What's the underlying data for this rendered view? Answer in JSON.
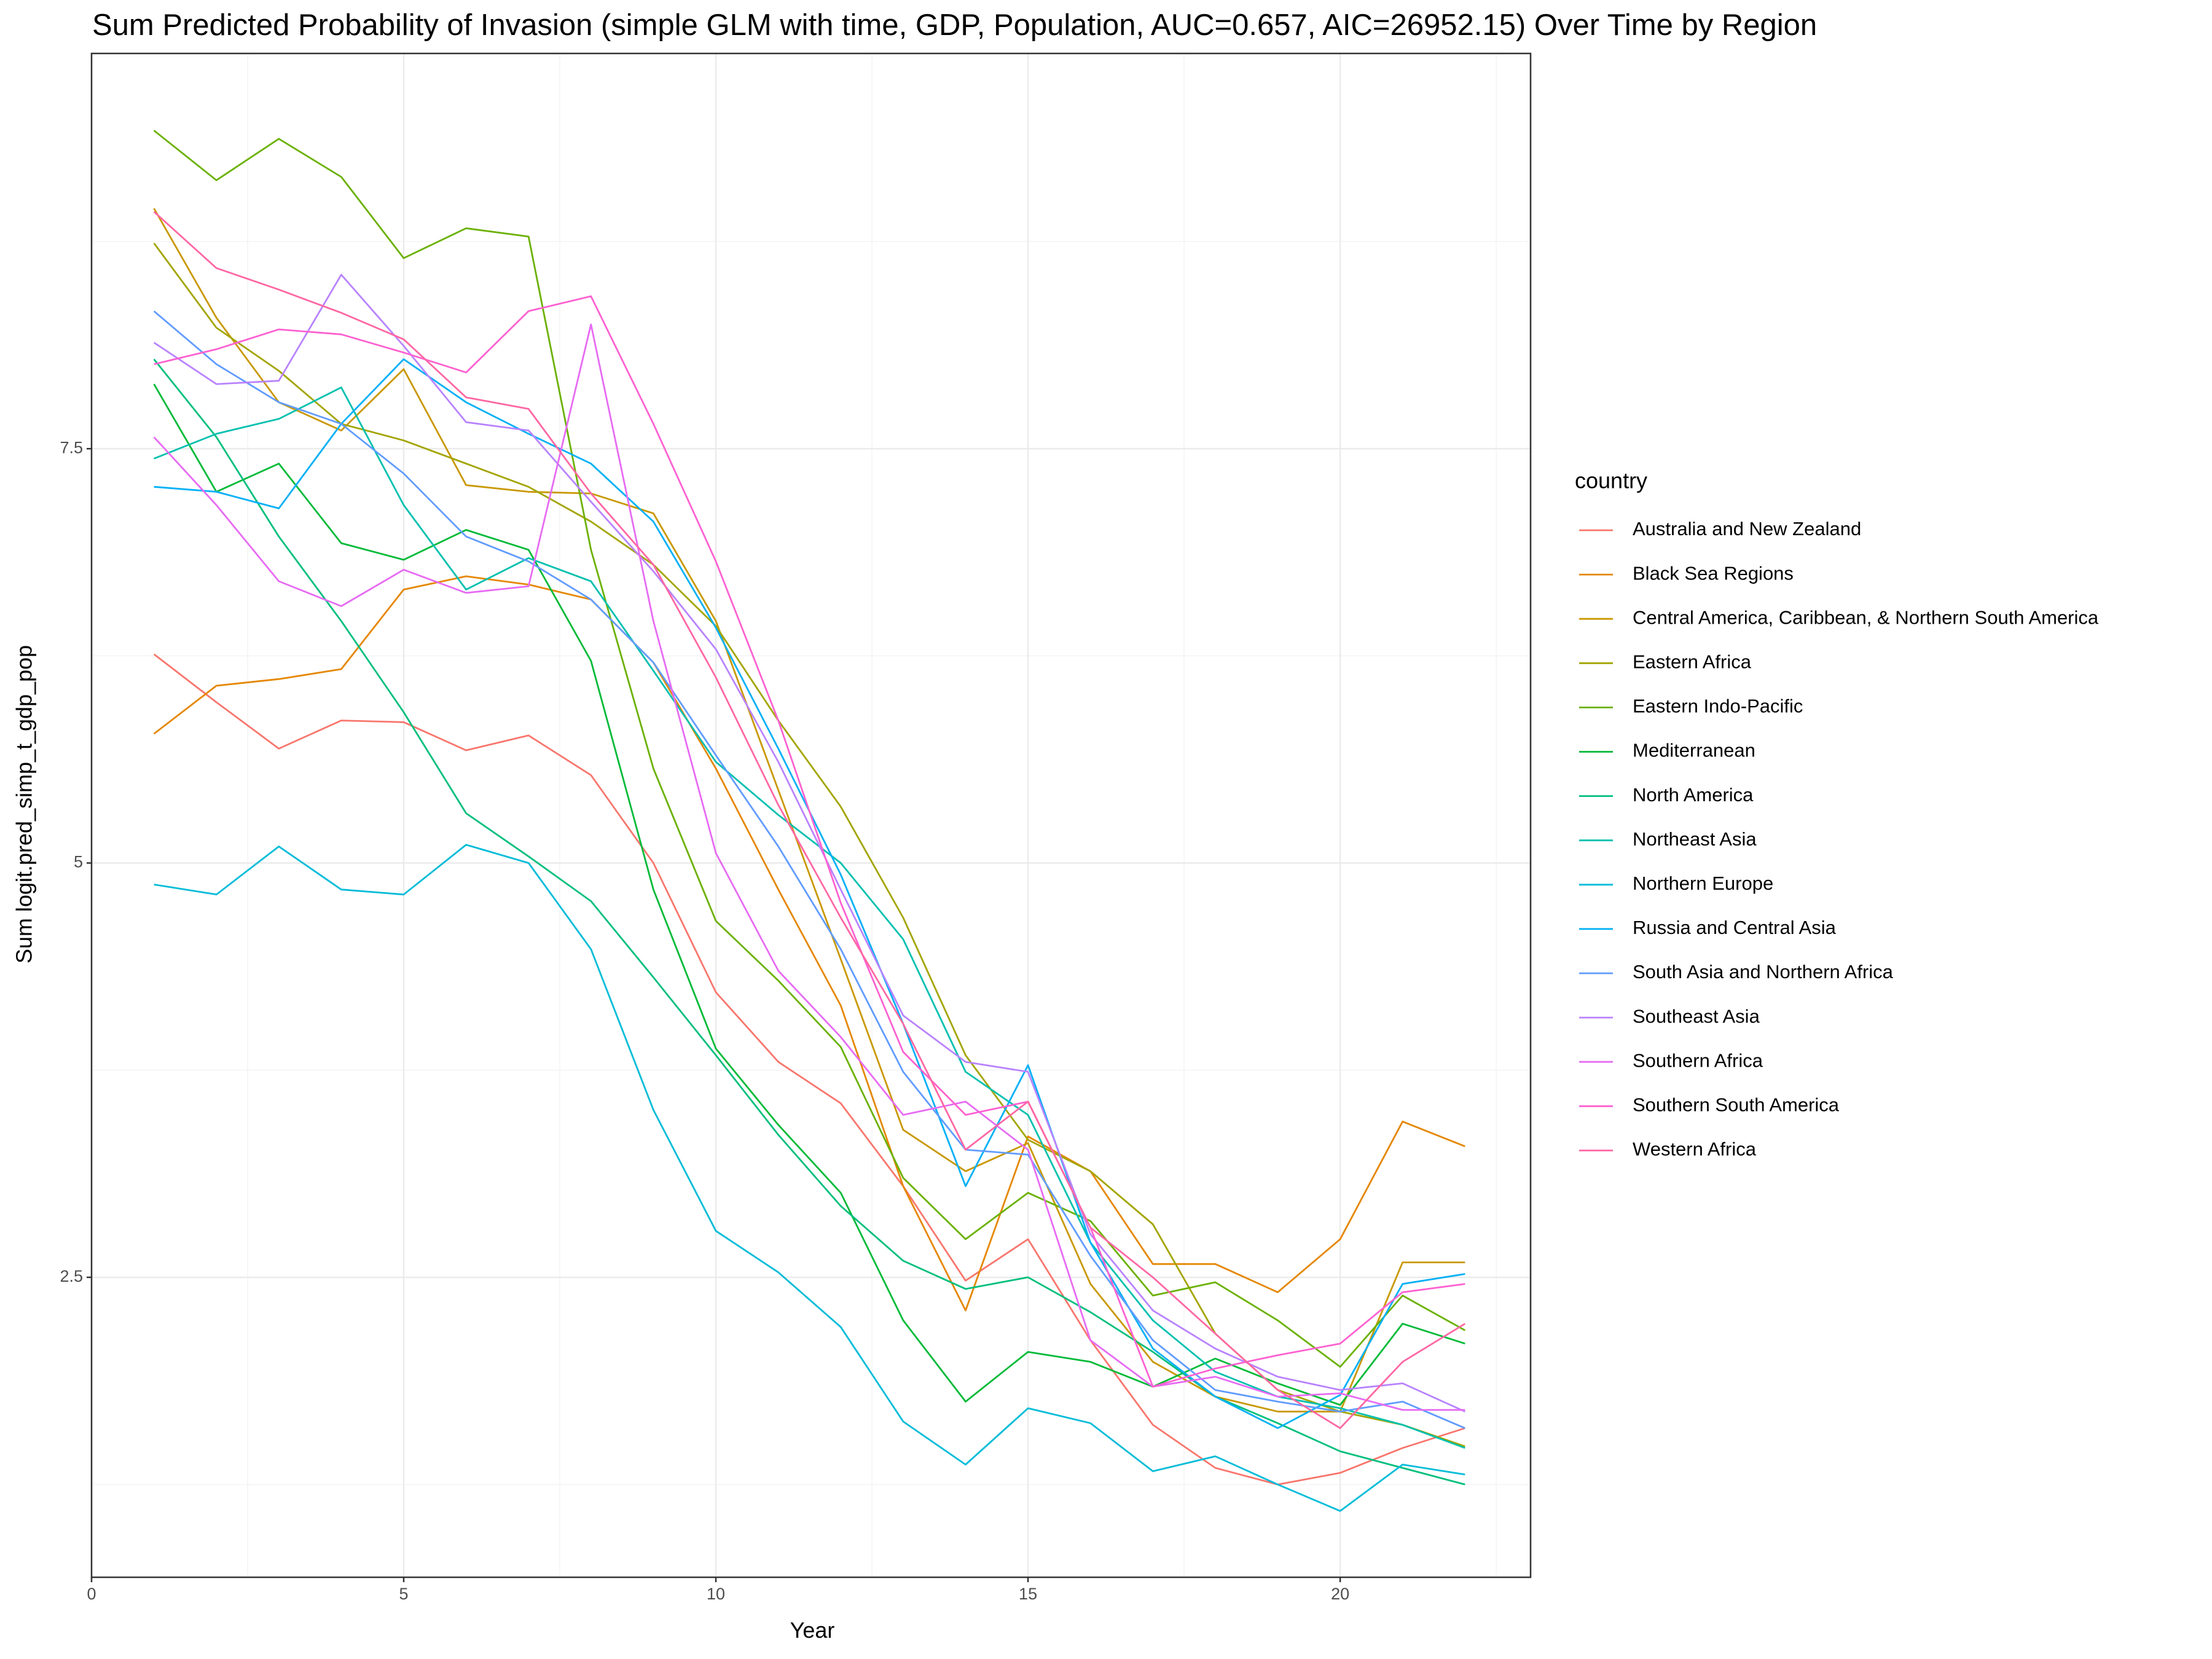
{
  "chart_data": {
    "type": "line",
    "title": "Sum Predicted Probability of Invasion (simple GLM with time, GDP, Population, AUC=0.657, AIC=26952.15) Over Time by Region",
    "x_label": "Year",
    "y_label": "Sum logit.pred_simp_t_gdp_pop",
    "legend_title": "country",
    "legend": "right",
    "grid": true,
    "xlim": [
      0,
      23.05
    ],
    "xticks": [
      0,
      5,
      10,
      15,
      20
    ],
    "ylim": [
      0.69,
      9.885
    ],
    "yticks": [
      2.5,
      5.0,
      7.5
    ],
    "x": [
      1,
      2,
      3,
      4,
      5,
      6,
      7,
      8,
      9,
      10,
      11,
      12,
      13,
      14,
      15,
      16,
      17,
      18,
      19,
      20,
      21,
      22
    ],
    "series": [
      {
        "name": "Australia and New Zealand",
        "color": "#F8766D",
        "values": [
          6.26,
          5.97,
          5.69,
          5.86,
          5.85,
          5.68,
          5.77,
          5.53,
          5.0,
          4.22,
          3.8,
          3.55,
          3.05,
          2.48,
          2.73,
          2.12,
          1.61,
          1.35,
          1.25,
          1.32,
          1.47,
          1.59
        ]
      },
      {
        "name": "Black Sea Regions",
        "color": "#E58700",
        "values": [
          5.78,
          6.07,
          6.11,
          6.17,
          6.65,
          6.73,
          6.68,
          6.59,
          6.21,
          5.57,
          4.84,
          4.14,
          3.05,
          2.3,
          3.35,
          3.14,
          2.58,
          2.58,
          2.41,
          2.73,
          3.44,
          3.29
        ]
      },
      {
        "name": "Central America, Caribbean, & Northern South America",
        "color": "#C99800",
        "values": [
          8.95,
          8.29,
          7.78,
          7.61,
          7.98,
          7.28,
          7.24,
          7.23,
          7.11,
          6.46,
          5.44,
          4.42,
          3.39,
          3.14,
          3.31,
          2.46,
          1.99,
          1.78,
          1.69,
          1.69,
          2.59,
          2.59
        ]
      },
      {
        "name": "Eastern Africa",
        "color": "#A3A500",
        "values": [
          8.74,
          8.23,
          7.97,
          7.65,
          7.55,
          7.41,
          7.27,
          7.06,
          6.8,
          6.43,
          5.86,
          5.34,
          4.67,
          3.84,
          3.33,
          3.14,
          2.82,
          2.16,
          1.82,
          1.69,
          1.61,
          1.48
        ]
      },
      {
        "name": "Eastern Indo-Pacific",
        "color": "#6BB100",
        "values": [
          9.42,
          9.12,
          9.37,
          9.14,
          8.65,
          8.83,
          8.78,
          6.89,
          5.57,
          4.65,
          4.29,
          3.89,
          3.1,
          2.73,
          3.01,
          2.84,
          2.39,
          2.47,
          2.24,
          1.96,
          2.39,
          2.18
        ]
      },
      {
        "name": "Mediterranean",
        "color": "#00BA38",
        "values": [
          7.89,
          7.24,
          7.41,
          6.93,
          6.83,
          7.01,
          6.89,
          6.22,
          4.84,
          3.88,
          3.42,
          3.01,
          2.24,
          1.75,
          2.05,
          1.99,
          1.84,
          2.01,
          1.86,
          1.73,
          2.22,
          2.1
        ]
      },
      {
        "name": "North America",
        "color": "#00BF7D",
        "values": [
          8.04,
          7.57,
          6.97,
          6.46,
          5.91,
          5.3,
          5.04,
          4.77,
          4.31,
          3.84,
          3.36,
          2.93,
          2.6,
          2.43,
          2.5,
          2.29,
          2.05,
          1.78,
          1.62,
          1.45,
          1.35,
          1.25
        ]
      },
      {
        "name": "Northeast Asia",
        "color": "#00C0AF",
        "values": [
          7.44,
          7.59,
          7.68,
          7.87,
          7.16,
          6.65,
          6.84,
          6.7,
          6.16,
          5.61,
          5.29,
          5.0,
          4.54,
          3.74,
          3.48,
          2.71,
          2.24,
          1.93,
          1.78,
          1.71,
          1.61,
          1.47
        ]
      },
      {
        "name": "Northern Europe",
        "color": "#00BCD8",
        "values": [
          4.87,
          4.81,
          5.1,
          4.84,
          4.81,
          5.11,
          5.0,
          4.48,
          3.51,
          2.78,
          2.53,
          2.2,
          1.63,
          1.37,
          1.71,
          1.62,
          1.33,
          1.42,
          1.25,
          1.09,
          1.37,
          1.31
        ]
      },
      {
        "name": "Russia and Central Asia",
        "color": "#00B0F6",
        "values": [
          7.27,
          7.24,
          7.14,
          7.65,
          8.04,
          7.78,
          7.59,
          7.41,
          7.06,
          6.42,
          5.69,
          4.93,
          4.03,
          3.05,
          3.78,
          2.71,
          2.07,
          1.78,
          1.59,
          1.79,
          2.46,
          2.52
        ]
      },
      {
        "name": "South Asia and Northern Africa",
        "color": "#619CFF",
        "values": [
          8.33,
          8.01,
          7.78,
          7.65,
          7.35,
          6.97,
          6.82,
          6.59,
          6.21,
          5.65,
          5.1,
          4.48,
          3.74,
          3.27,
          3.24,
          2.63,
          2.12,
          1.82,
          1.75,
          1.69,
          1.75,
          1.59
        ]
      },
      {
        "name": "Southeast Asia",
        "color": "#B983FF",
        "values": [
          8.14,
          7.89,
          7.91,
          8.55,
          8.12,
          7.66,
          7.61,
          7.18,
          6.76,
          6.29,
          5.61,
          4.84,
          4.08,
          3.8,
          3.74,
          2.76,
          2.3,
          2.07,
          1.9,
          1.82,
          1.86,
          1.69
        ]
      },
      {
        "name": "Southern Africa",
        "color": "#E76BF3",
        "values": [
          7.57,
          7.16,
          6.7,
          6.55,
          6.77,
          6.63,
          6.67,
          8.25,
          6.46,
          5.06,
          4.35,
          3.95,
          3.48,
          3.56,
          3.27,
          2.12,
          1.84,
          1.9,
          1.78,
          1.8,
          1.7,
          1.7
        ]
      },
      {
        "name": "Southern South America",
        "color": "#FD61D1",
        "values": [
          8.01,
          8.1,
          8.22,
          8.19,
          8.08,
          7.96,
          8.33,
          8.42,
          7.65,
          6.82,
          5.86,
          4.76,
          3.86,
          3.48,
          3.56,
          2.8,
          1.84,
          1.95,
          2.03,
          2.1,
          2.41,
          2.46
        ]
      },
      {
        "name": "Western Africa",
        "color": "#FF67A4",
        "values": [
          8.93,
          8.59,
          8.46,
          8.32,
          8.16,
          7.81,
          7.74,
          7.23,
          6.8,
          6.12,
          5.35,
          4.67,
          4.03,
          3.27,
          3.56,
          2.8,
          2.5,
          2.16,
          1.82,
          1.59,
          1.99,
          2.22
        ]
      }
    ]
  }
}
